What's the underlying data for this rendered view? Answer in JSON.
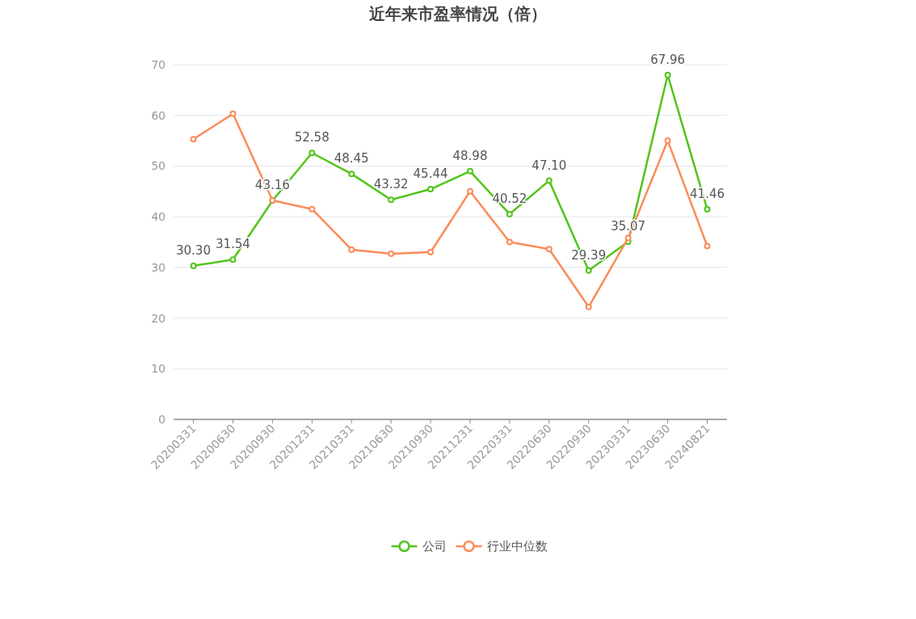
{
  "chart_data": {
    "type": "line",
    "title": "近年来市盈率情况（倍）",
    "categories": [
      "20200331",
      "20200630",
      "20200930",
      "20201231",
      "20210331",
      "20210630",
      "20210930",
      "20211231",
      "20220331",
      "20220630",
      "20220930",
      "20230331",
      "20230630",
      "20240821"
    ],
    "series": [
      {
        "name": "公司",
        "color": "#52c41a",
        "values": [
          30.3,
          31.54,
          43.16,
          52.58,
          48.45,
          43.32,
          45.44,
          48.98,
          40.52,
          47.1,
          29.39,
          35.07,
          67.96,
          41.46
        ],
        "value_labels": [
          "30.30",
          "31.54",
          "43.16",
          "52.58",
          "48.45",
          "43.32",
          "45.44",
          "48.98",
          "40.52",
          "47.10",
          "29.39",
          "35.07",
          "67.96",
          "41.46"
        ]
      },
      {
        "name": "行业中位数",
        "color": "#fa8c5a",
        "values": [
          55.3,
          60.3,
          43.2,
          41.5,
          33.5,
          32.7,
          33.0,
          45.0,
          35.0,
          33.6,
          22.2,
          35.8,
          55.0,
          34.2
        ]
      }
    ],
    "ylim": [
      0,
      70
    ],
    "yticks": [
      0,
      10,
      20,
      30,
      40,
      50,
      60,
      70
    ],
    "grid": "y",
    "legend": "bottom",
    "marker": "circle",
    "line_style": "solid"
  }
}
